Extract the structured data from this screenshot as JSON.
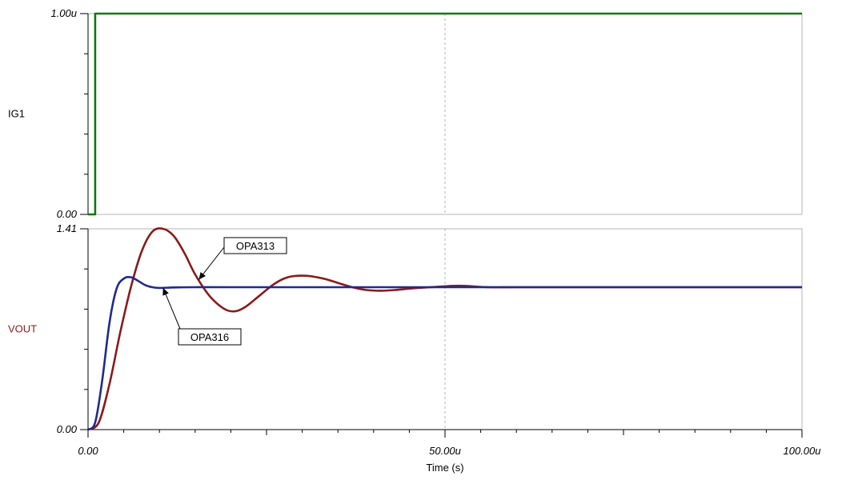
{
  "chart_data": [
    {
      "type": "line",
      "ylabel": "IG1",
      "ylabel_color": "#000000",
      "ylim": [
        0,
        1.0
      ],
      "ytick_labels": [
        "0.00",
        "1.00u"
      ],
      "xlim": [
        0,
        100
      ],
      "x_grid": [
        50
      ],
      "series": [
        {
          "color": "#0b7a0b",
          "x": [
            0,
            1,
            1,
            100
          ],
          "y": [
            0,
            0,
            1,
            1
          ]
        }
      ]
    },
    {
      "type": "line",
      "ylabel": "VOUT",
      "ylabel_color": "#8b1a1a",
      "ylim": [
        0,
        1.41
      ],
      "ytick_labels": [
        "0.00",
        "1.41"
      ],
      "xlim": [
        0,
        100
      ],
      "xlabel": "Time (s)",
      "xtick_labels": [
        "0.00",
        "50.00u",
        "100.00u"
      ],
      "xtick_values": [
        0,
        50,
        100
      ],
      "x_grid": [
        50
      ],
      "series": [
        {
          "name": "OPA313",
          "color": "#8b1a1a",
          "x": [
            0,
            1.5,
            3,
            4.5,
            6,
            7.5,
            9,
            10.5,
            12,
            13.5,
            15,
            17,
            19,
            20.5,
            22,
            24,
            26,
            28,
            30.5,
            33,
            35,
            37,
            39,
            41,
            43,
            45,
            48,
            52,
            56,
            60,
            70,
            80,
            90,
            100
          ],
          "y": [
            0,
            0.05,
            0.32,
            0.68,
            1.0,
            1.25,
            1.39,
            1.41,
            1.36,
            1.24,
            1.09,
            0.94,
            0.85,
            0.83,
            0.86,
            0.94,
            1.02,
            1.07,
            1.08,
            1.06,
            1.03,
            1.0,
            0.98,
            0.975,
            0.98,
            0.99,
            1.0,
            1.01,
            1.0,
            1.0,
            1.0,
            1.0,
            1.0,
            1.0
          ]
        },
        {
          "name": "OPA316",
          "color": "#1f2a8f",
          "x": [
            0,
            1,
            2,
            3,
            4,
            5,
            6,
            7,
            8,
            9,
            10,
            12,
            15,
            20,
            30,
            50,
            100
          ],
          "y": [
            0,
            0.05,
            0.35,
            0.75,
            0.99,
            1.06,
            1.07,
            1.045,
            1.015,
            1.0,
            0.995,
            0.998,
            1.0,
            1.0,
            1.0,
            1.0,
            1.0
          ]
        }
      ],
      "annotations": [
        {
          "text": "OPA313",
          "series": "OPA313",
          "at_x": 15.5
        },
        {
          "text": "OPA316",
          "series": "OPA316",
          "at_x": 10.5
        }
      ]
    }
  ]
}
